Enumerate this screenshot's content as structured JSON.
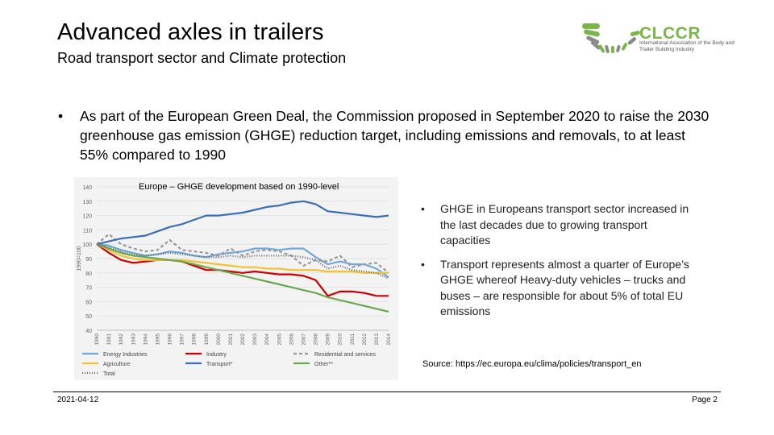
{
  "slide": {
    "title": "Advanced axles in trailers",
    "subtitle": "Road transport sector and Climate protection",
    "logo_name": "CLCCR",
    "logo_tagline": "International Association of the Body and Trailer Building Industry",
    "main_bullet": "As part of the European Green Deal, the Commission proposed in September 2020 to raise the 2030 greenhouse gas emission (GHGE) reduction target, including emissions and removals, to at least 55% compared to 1990",
    "right_bullets": [
      "GHGE in Europeans transport sector increased in the last decades due to growing transport capacities",
      "Transport represents almost a quarter of Europe’s GHGE whereof Heavy-duty vehicles – trucks and buses – are responsible for about 5% of total EU emissions"
    ],
    "source": "Source: https://ec.europa.eu/clima/policies/transport_en",
    "date": "2021-04-12",
    "page": "Page 2",
    "bullet_char": "•"
  },
  "chart_data": {
    "type": "line",
    "title": "Europe – GHGE development based on 1990-level",
    "ylabel": "1990=100",
    "xlabel": "",
    "ylim": [
      40,
      140
    ],
    "yticks": [
      40,
      50,
      60,
      70,
      80,
      90,
      100,
      110,
      120,
      130,
      140
    ],
    "x": [
      "1990",
      "1991",
      "1992",
      "1993",
      "1994",
      "1995",
      "1996",
      "1997",
      "1998",
      "1999",
      "2000",
      "2001",
      "2002",
      "2003",
      "2004",
      "2005",
      "2006",
      "2007",
      "2008",
      "2009",
      "2010",
      "2011",
      "2012",
      "2013",
      "2014"
    ],
    "series": [
      {
        "name": "Energy Industries",
        "color": "#6fa8dc",
        "dash": "",
        "values": [
          100,
          99,
          96,
          94,
          92,
          93,
          95,
          94,
          92,
          91,
          93,
          94,
          95,
          97,
          97,
          96,
          97,
          97,
          91,
          86,
          88,
          86,
          86,
          83,
          77
        ]
      },
      {
        "name": "Industry",
        "color": "#cc0000",
        "dash": "",
        "values": [
          100,
          94,
          89,
          87,
          88,
          89,
          89,
          88,
          85,
          82,
          82,
          81,
          80,
          81,
          80,
          79,
          79,
          78,
          75,
          64,
          67,
          67,
          66,
          64,
          64
        ]
      },
      {
        "name": "Residential and services",
        "color": "#999999",
        "dash": "4,3",
        "values": [
          100,
          107,
          100,
          97,
          95,
          96,
          103,
          96,
          95,
          94,
          92,
          97,
          92,
          95,
          96,
          95,
          92,
          85,
          89,
          88,
          92,
          84,
          86,
          87,
          80
        ]
      },
      {
        "name": "Agriculture",
        "color": "#f1c232",
        "dash": "",
        "values": [
          100,
          96,
          92,
          90,
          89,
          89,
          89,
          89,
          88,
          87,
          86,
          85,
          84,
          84,
          83,
          83,
          82,
          82,
          82,
          81,
          81,
          81,
          80,
          80,
          80
        ]
      },
      {
        "name": "Transport*",
        "color": "#3d6eb4",
        "dash": "",
        "values": [
          100,
          102,
          104,
          105,
          106,
          109,
          112,
          114,
          117,
          120,
          120,
          121,
          122,
          124,
          126,
          127,
          129,
          130,
          128,
          123,
          122,
          121,
          120,
          119,
          120
        ]
      },
      {
        "name": "Other**",
        "color": "#6aa84f",
        "dash": "",
        "values": [
          100,
          97,
          94,
          92,
          91,
          90,
          89,
          88,
          86,
          84,
          82,
          80,
          78,
          76,
          74,
          72,
          70,
          68,
          66,
          63,
          61,
          59,
          57,
          55,
          53
        ]
      },
      {
        "name": "Total",
        "color": "#666666",
        "dash": "1,2",
        "values": [
          100,
          98,
          95,
          93,
          92,
          93,
          94,
          93,
          92,
          91,
          91,
          92,
          91,
          92,
          92,
          92,
          92,
          91,
          89,
          83,
          85,
          82,
          81,
          80,
          76
        ]
      }
    ]
  }
}
